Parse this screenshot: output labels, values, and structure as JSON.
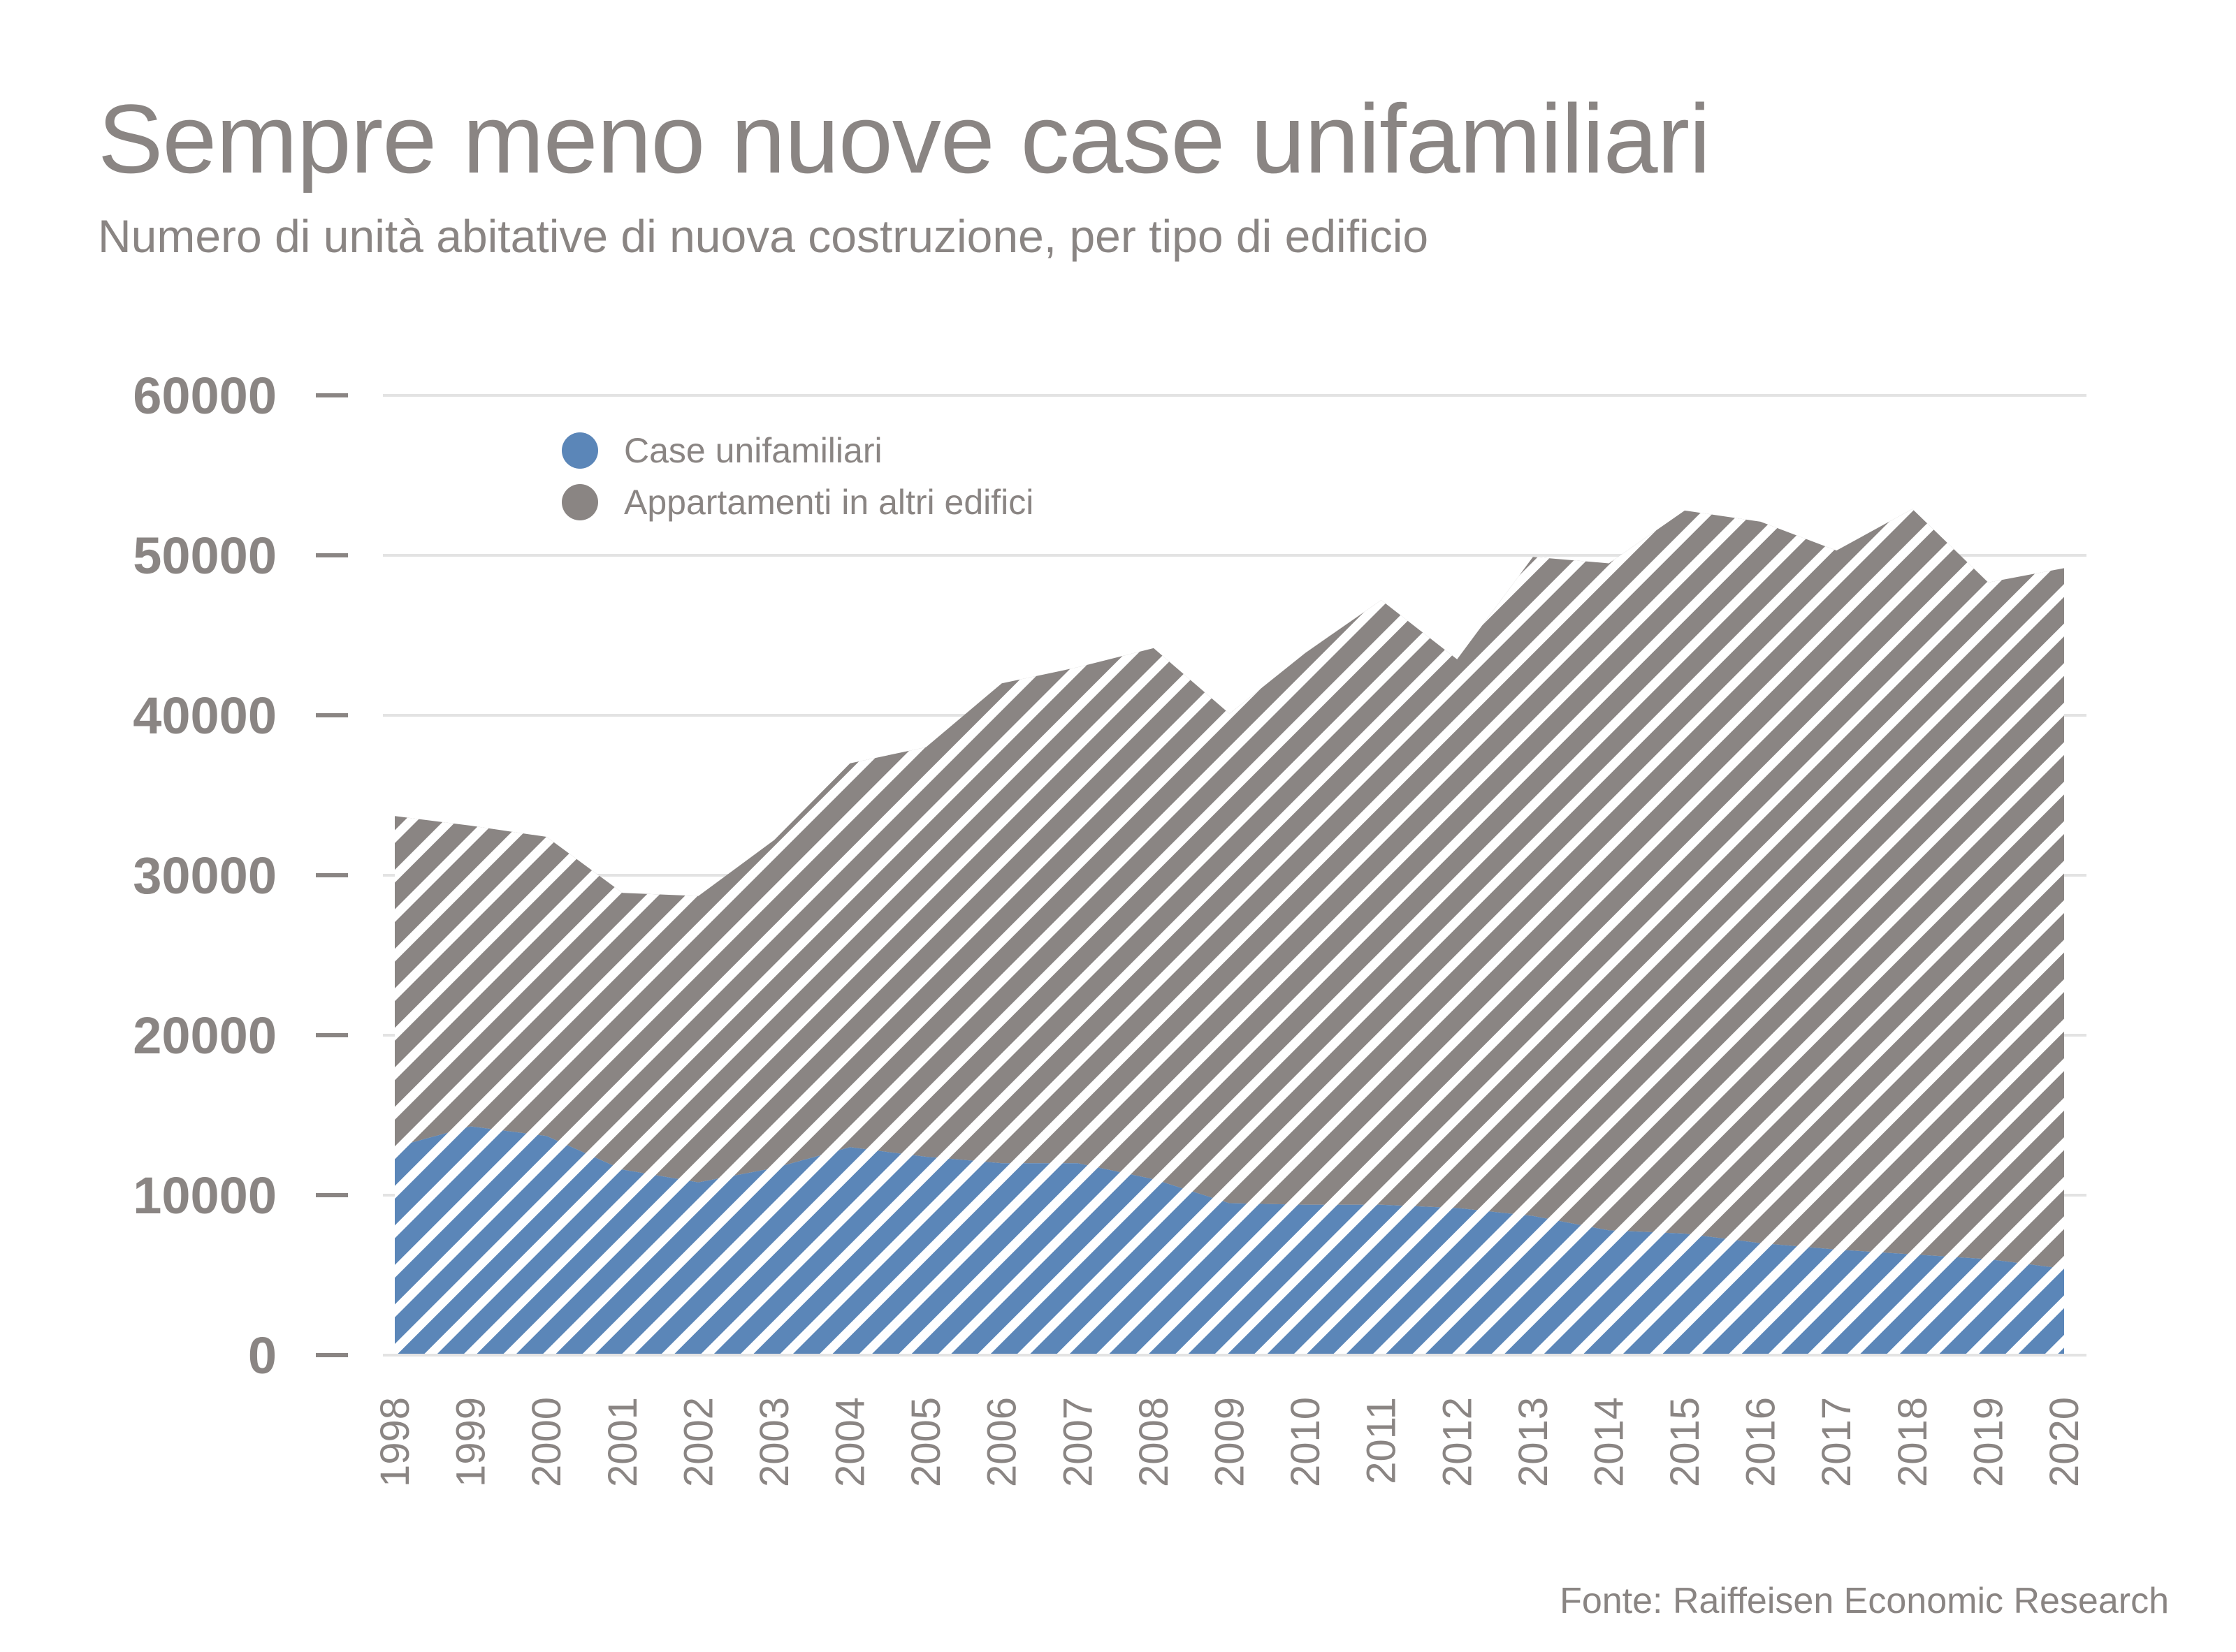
{
  "title": "Sempre meno nuove case unifamiliari",
  "subtitle": "Numero di unità abitative di nuova costruzione, per tipo di edificio",
  "source": "Fonte: Raiffeisen Economic Research",
  "colors": {
    "case_unifamiliari": "#5b86b8",
    "appartamenti": "#8a8583",
    "grid": "#e3e3e3",
    "text": "#8a8583"
  },
  "chart_data": {
    "type": "area",
    "stacked": true,
    "pattern": "diagonal-stripes",
    "title": "Sempre meno nuove case unifamiliari",
    "subtitle": "Numero di unità abitative di nuova costruzione, per tipo di edificio",
    "x": [
      1998,
      1999,
      2000,
      2001,
      2002,
      2003,
      2004,
      2005,
      2006,
      2007,
      2008,
      2009,
      2010,
      2011,
      2012,
      2013,
      2014,
      2015,
      2016,
      2017,
      2018,
      2019,
      2020
    ],
    "x_tick_labels": [
      "1998",
      "1999",
      "2000",
      "2001",
      "2002",
      "2003",
      "2004",
      "2005",
      "2006",
      "2007",
      "2008",
      "2009",
      "2010",
      "2011",
      "2012",
      "2013",
      "2014",
      "2015",
      "2016",
      "2017",
      "2018",
      "2019",
      "2020"
    ],
    "y_tick_labels": [
      "0",
      "10000",
      "20000",
      "30000",
      "40000",
      "50000",
      "60000"
    ],
    "ylim": [
      0,
      60000
    ],
    "grid": true,
    "legend_position": "top-left",
    "series": [
      {
        "name": "Case unifamiliari",
        "values": [
          13000,
          14300,
          13700,
          11600,
          10800,
          11700,
          13000,
          12400,
          12000,
          12000,
          11000,
          9500,
          9400,
          9400,
          9200,
          8700,
          7800,
          7600,
          7000,
          6600,
          6300,
          6000,
          5400
        ]
      },
      {
        "name": "Appartamenti in altri edifici",
        "values": [
          20700,
          18800,
          18700,
          17300,
          17900,
          20500,
          24000,
          25600,
          30000,
          31000,
          33200,
          30600,
          34500,
          37800,
          34300,
          41200,
          41700,
          45200,
          45100,
          43700,
          46600,
          42300,
          43800
        ]
      }
    ]
  }
}
